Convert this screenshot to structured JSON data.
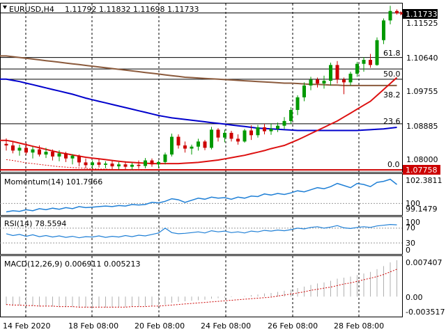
{
  "main": {
    "symbol_label": "EURUSD,H4",
    "ohlc_label": "1.11792 1.11832 1.11698 1.11733",
    "price_ticks": [
      "1.11525",
      "1.10640",
      "1.09755",
      "1.08885",
      "1.08000"
    ],
    "current_price_label": "1.11733",
    "low_price_label": "1.07758",
    "fib_labels": [
      "61.8",
      "50.0",
      "38.2",
      "23.6",
      "0.0"
    ],
    "fib_levels": [
      1.1061,
      1.1032,
      1.1006,
      1.0893,
      1.0776
    ],
    "top_line_price": 1.1174,
    "ylim": [
      1.0771,
      1.1198
    ]
  },
  "momentum": {
    "label": "Momentum(14) 101.7966",
    "ticks": [
      "102.3811",
      "100",
      "99.1479"
    ],
    "ylim": [
      98.9,
      102.8
    ]
  },
  "rsi": {
    "label": "RSI(14) 78.5594",
    "ticks": [
      "100",
      "70",
      "30",
      "0"
    ]
  },
  "macd": {
    "label": "MACD(12,26,9) 0.006911 0.005213",
    "ticks": [
      "0.007407",
      "0.00",
      "-0.003517"
    ],
    "ylim": [
      -0.0038,
      0.0077
    ]
  },
  "time_labels": [
    "14 Feb 2020",
    "18 Feb 08:00",
    "20 Feb 08:00",
    "24 Feb 08:00",
    "26 Feb 08:00",
    "28 Feb 08:00"
  ],
  "colors": {
    "bull": "#009900",
    "bear": "#cc0000",
    "fast_ma": "#dd1111",
    "slow_ma": "#0000cc",
    "long_ma": "#8b5a3c",
    "indicator": "#1e7fd6",
    "signal": "#cc0000",
    "grid": "#000000"
  },
  "chart_data": {
    "type": "candlestick",
    "symbol": "EURUSD",
    "timeframe": "H4",
    "candles": [
      [
        1.0842,
        1.0856,
        1.0825,
        1.0838
      ],
      [
        1.0838,
        1.0848,
        1.0818,
        1.0825
      ],
      [
        1.0825,
        1.084,
        1.0812,
        1.0832
      ],
      [
        1.0832,
        1.0845,
        1.0815,
        1.082
      ],
      [
        1.082,
        1.0835,
        1.0805,
        1.0828
      ],
      [
        1.0828,
        1.0838,
        1.081,
        1.0815
      ],
      [
        1.0815,
        1.0832,
        1.0806,
        1.0822
      ],
      [
        1.0822,
        1.0828,
        1.08,
        1.081
      ],
      [
        1.081,
        1.0826,
        1.0798,
        1.0818
      ],
      [
        1.0818,
        1.0822,
        1.0796,
        1.0805
      ],
      [
        1.0805,
        1.0816,
        1.079,
        1.0812
      ],
      [
        1.0812,
        1.0815,
        1.0785,
        1.0795
      ],
      [
        1.0795,
        1.0805,
        1.078,
        1.0788
      ],
      [
        1.0788,
        1.08,
        1.0779,
        1.0795
      ],
      [
        1.0795,
        1.0805,
        1.0782,
        1.0789
      ],
      [
        1.0789,
        1.0798,
        1.078,
        1.0792
      ],
      [
        1.0792,
        1.08,
        1.0778,
        1.0785
      ],
      [
        1.0785,
        1.0796,
        1.0777,
        1.079
      ],
      [
        1.079,
        1.0798,
        1.0778,
        1.0784
      ],
      [
        1.0784,
        1.0794,
        1.0776,
        1.0789
      ],
      [
        1.0789,
        1.08,
        1.0779,
        1.0786
      ],
      [
        1.0786,
        1.0806,
        1.078,
        1.08
      ],
      [
        1.08,
        1.0805,
        1.0784,
        1.079
      ],
      [
        1.079,
        1.08,
        1.078,
        1.0796
      ],
      [
        1.0796,
        1.082,
        1.079,
        1.0815
      ],
      [
        1.0815,
        1.0868,
        1.081,
        1.086
      ],
      [
        1.086,
        1.0866,
        1.083,
        1.0838
      ],
      [
        1.0838,
        1.0848,
        1.082,
        1.083
      ],
      [
        1.083,
        1.084,
        1.0815,
        1.0835
      ],
      [
        1.0835,
        1.0855,
        1.0825,
        1.0848
      ],
      [
        1.0848,
        1.0852,
        1.0826,
        1.0832
      ],
      [
        1.0832,
        1.0885,
        1.0828,
        1.0878
      ],
      [
        1.0878,
        1.0882,
        1.0848,
        1.0858
      ],
      [
        1.0858,
        1.0878,
        1.0846,
        1.087
      ],
      [
        1.087,
        1.0875,
        1.0848,
        1.0855
      ],
      [
        1.0855,
        1.0866,
        1.084,
        1.0848
      ],
      [
        1.0848,
        1.088,
        1.0845,
        1.0876
      ],
      [
        1.0876,
        1.0889,
        1.0852,
        1.0864
      ],
      [
        1.0864,
        1.089,
        1.0858,
        1.0884
      ],
      [
        1.0884,
        1.0893,
        1.0866,
        1.0874
      ],
      [
        1.0874,
        1.0894,
        1.0865,
        1.088
      ],
      [
        1.088,
        1.0896,
        1.0872,
        1.0888
      ],
      [
        1.0888,
        1.091,
        1.088,
        1.09
      ],
      [
        1.09,
        1.0935,
        1.0892,
        1.0928
      ],
      [
        1.0928,
        1.0965,
        1.0915,
        1.096
      ],
      [
        1.096,
        1.0998,
        1.095,
        1.099
      ],
      [
        1.099,
        1.1012,
        1.0978,
        1.1005
      ],
      [
        1.1005,
        1.101,
        1.0985,
        1.0995
      ],
      [
        1.0995,
        1.1015,
        1.0982,
        1.1002
      ],
      [
        1.1002,
        1.1048,
        1.099,
        1.1042
      ],
      [
        1.1042,
        1.1052,
        1.0995,
        1.1005
      ],
      [
        1.1005,
        1.101,
        1.0968,
        1.0998
      ],
      [
        1.0998,
        1.1025,
        1.099,
        1.102
      ],
      [
        1.102,
        1.105,
        1.1012,
        1.1045
      ],
      [
        1.1045,
        1.1062,
        1.1025,
        1.1055
      ],
      [
        1.1055,
        1.107,
        1.1035,
        1.1042
      ],
      [
        1.1042,
        1.1112,
        1.104,
        1.1105
      ],
      [
        1.1105,
        1.116,
        1.1095,
        1.1155
      ],
      [
        1.1155,
        1.1192,
        1.1145,
        1.1179
      ],
      [
        1.1179,
        1.1183,
        1.117,
        1.1173
      ]
    ],
    "slow_ma": [
      1.1006,
      1.1003,
      1.1,
      1.0996,
      1.0992,
      1.0988,
      1.0984,
      1.098,
      1.0976,
      1.0972,
      1.0968,
      1.0963,
      1.0958,
      1.0954,
      1.095,
      1.0946,
      1.0942,
      1.0938,
      1.0934,
      1.093,
      1.0926,
      1.0922,
      1.0918,
      1.0914,
      1.0911,
      1.0908,
      1.0906,
      1.0904,
      1.0902,
      1.09,
      1.0898,
      1.0896,
      1.0894,
      1.0892,
      1.089,
      1.0888,
      1.0886,
      1.0884,
      1.0882,
      1.0881,
      1.088,
      1.0879,
      1.0878,
      1.0877,
      1.0876,
      1.0876,
      1.0876,
      1.0876,
      1.0876,
      1.0876,
      1.0876,
      1.0876,
      1.0876,
      1.0876,
      1.0877,
      1.0878,
      1.0879,
      1.088,
      1.0882,
      1.0884
    ],
    "long_ma": [
      1.1065,
      1.1063,
      1.1061,
      1.1059,
      1.1057,
      1.1055,
      1.1053,
      1.1051,
      1.1049,
      1.1047,
      1.1045,
      1.1043,
      1.1041,
      1.1039,
      1.1037,
      1.1035,
      1.1033,
      1.1031,
      1.1029,
      1.1027,
      1.1025,
      1.1023,
      1.1021,
      1.1019,
      1.1017,
      1.1015,
      1.1013,
      1.1011,
      1.101,
      1.1009,
      1.1008,
      1.1007,
      1.1006,
      1.1005,
      1.1004,
      1.1003,
      1.1002,
      1.1001,
      1.1,
      1.0999,
      1.0998,
      1.0997,
      1.0996,
      1.0996,
      1.0995,
      1.0994,
      1.0993,
      1.0993,
      1.0992,
      1.0991,
      1.0991,
      1.099,
      1.099,
      1.099,
      1.099,
      1.099,
      1.099,
      1.099,
      1.099,
      1.099
    ],
    "fast_ma": [
      1.0851,
      1.0848,
      1.0844,
      1.084,
      1.0836,
      1.0832,
      1.0828,
      1.0824,
      1.082,
      1.0817,
      1.0814,
      1.0811,
      1.0808,
      1.0806,
      1.0804,
      1.0802,
      1.08,
      1.0798,
      1.0796,
      1.0795,
      1.0794,
      1.0793,
      1.0792,
      1.0792,
      1.0792,
      1.0792,
      1.0792,
      1.0793,
      1.0794,
      1.0795,
      1.0797,
      1.0799,
      1.0801,
      1.0804,
      1.0807,
      1.081,
      1.0813,
      1.0817,
      1.0821,
      1.0825,
      1.083,
      1.0834,
      1.0838,
      1.0845,
      1.0852,
      1.086,
      1.0868,
      1.0876,
      1.0884,
      1.0892,
      1.09,
      1.091,
      1.092,
      1.093,
      1.094,
      1.095,
      1.0965,
      1.098,
      1.0995,
      1.101
    ],
    "lower_dotted": [
      1.0802,
      1.08,
      1.0797,
      1.0794,
      1.0792,
      1.079,
      1.0788,
      1.0786,
      1.0784,
      1.0783,
      1.0782,
      1.0781,
      1.078,
      1.0779,
      1.0778,
      1.0778,
      1.0777,
      1.0777,
      1.0777,
      1.0776,
      1.0776,
      1.0776
    ],
    "momentum": [
      99.2,
      99.3,
      99.25,
      99.4,
      99.3,
      99.5,
      99.4,
      99.55,
      99.45,
      99.6,
      99.5,
      99.7,
      99.6,
      99.65,
      99.7,
      99.75,
      99.7,
      99.8,
      99.75,
      99.9,
      99.85,
      99.9,
      100.1,
      100.05,
      100.2,
      100.45,
      100.35,
      100.1,
      100.3,
      100.5,
      100.4,
      100.6,
      100.5,
      100.55,
      100.4,
      100.6,
      100.5,
      100.7,
      100.65,
      100.9,
      100.8,
      100.95,
      100.85,
      101.0,
      101.2,
      101.1,
      101.3,
      101.5,
      101.4,
      101.6,
      101.9,
      101.7,
      101.5,
      101.9,
      101.8,
      101.6,
      102.0,
      102.1,
      102.3,
      101.8
    ],
    "rsi": [
      55,
      50,
      53,
      48,
      52,
      47,
      50,
      46,
      49,
      45,
      48,
      44,
      47,
      46,
      49,
      45,
      48,
      46,
      50,
      47,
      51,
      49,
      53,
      57,
      70,
      58,
      55,
      56,
      58,
      60,
      57,
      63,
      60,
      62,
      58,
      60,
      57,
      62,
      60,
      64,
      62,
      65,
      63,
      66,
      70,
      68,
      72,
      74,
      70,
      73,
      77,
      71,
      69,
      72,
      74,
      72,
      76,
      78,
      80,
      79
    ],
    "macd": [
      -0.0016,
      -0.0017,
      -0.0017,
      -0.0018,
      -0.0018,
      -0.0019,
      -0.0019,
      -0.0019,
      -0.002,
      -0.002,
      -0.002,
      -0.0021,
      -0.0021,
      -0.0021,
      -0.0021,
      -0.0021,
      -0.0021,
      -0.002,
      -0.002,
      -0.0019,
      -0.0019,
      -0.0018,
      -0.0018,
      -0.0017,
      -0.0015,
      -0.0012,
      -0.001,
      -0.0009,
      -0.0008,
      -0.0007,
      -0.0006,
      -0.0004,
      -0.0003,
      -0.0002,
      -0.0001,
      0.0,
      0.0001,
      0.0003,
      0.0004,
      0.0006,
      0.0007,
      0.0009,
      0.0011,
      0.0013,
      0.0016,
      0.0019,
      0.0022,
      0.0025,
      0.0027,
      0.003,
      0.0034,
      0.0036,
      0.0038,
      0.0041,
      0.0044,
      0.0047,
      0.0052,
      0.0058,
      0.0065,
      0.0069
    ],
    "macd_signal": [
      -0.0015,
      -0.0016,
      -0.0016,
      -0.0017,
      -0.0017,
      -0.0018,
      -0.0018,
      -0.0018,
      -0.0019,
      -0.0019,
      -0.0019,
      -0.002,
      -0.002,
      -0.002,
      -0.002,
      -0.002,
      -0.002,
      -0.002,
      -0.002,
      -0.0019,
      -0.0019,
      -0.0019,
      -0.0018,
      -0.0018,
      -0.0017,
      -0.0016,
      -0.0015,
      -0.0014,
      -0.0013,
      -0.0012,
      -0.0011,
      -0.001,
      -0.0009,
      -0.0008,
      -0.0007,
      -0.0006,
      -0.0005,
      -0.0004,
      -0.0003,
      -0.0002,
      -0.0001,
      0.0001,
      0.0003,
      0.0005,
      0.0007,
      0.0009,
      0.0012,
      0.0014,
      0.0016,
      0.0018,
      0.0021,
      0.0024,
      0.0026,
      0.0029,
      0.0032,
      0.0035,
      0.0038,
      0.0042,
      0.0047,
      0.0052
    ]
  }
}
